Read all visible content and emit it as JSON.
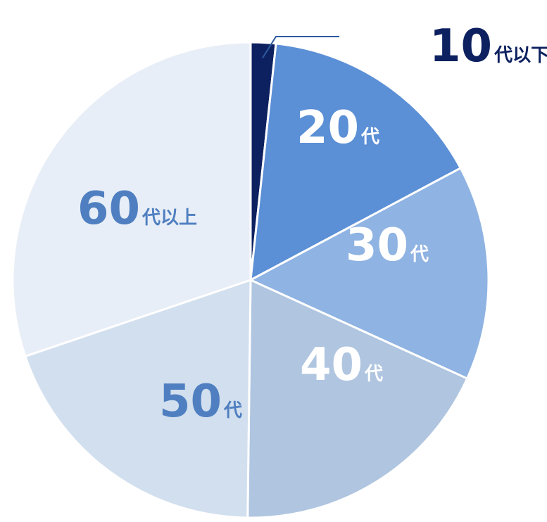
{
  "chart_data": {
    "type": "pie",
    "categories": [
      "10代以下",
      "20代",
      "30代",
      "40代",
      "50代",
      "60代以上"
    ],
    "values": [
      1.7,
      15.5,
      14.6,
      18.4,
      19.6,
      30.2
    ],
    "labels": [
      {
        "num": "10",
        "suffix": "代以下"
      },
      {
        "num": "20",
        "suffix": "代"
      },
      {
        "num": "30",
        "suffix": "代"
      },
      {
        "num": "40",
        "suffix": "代"
      },
      {
        "num": "50",
        "suffix": "代"
      },
      {
        "num": "60",
        "suffix": "代以上"
      }
    ],
    "colors": [
      "#0d2160",
      "#5b8fd6",
      "#8fb3e2",
      "#afc5e0",
      "#d2dfee",
      "#e8eef7"
    ],
    "label_colors": [
      "#0d2160",
      "#ffffff",
      "#ffffff",
      "#ffffff",
      "#4f7fc0",
      "#4f7fc0"
    ],
    "leader_color": "#2d5aa0",
    "start_angle_deg": 0,
    "direction": "clockwise",
    "title": ""
  }
}
